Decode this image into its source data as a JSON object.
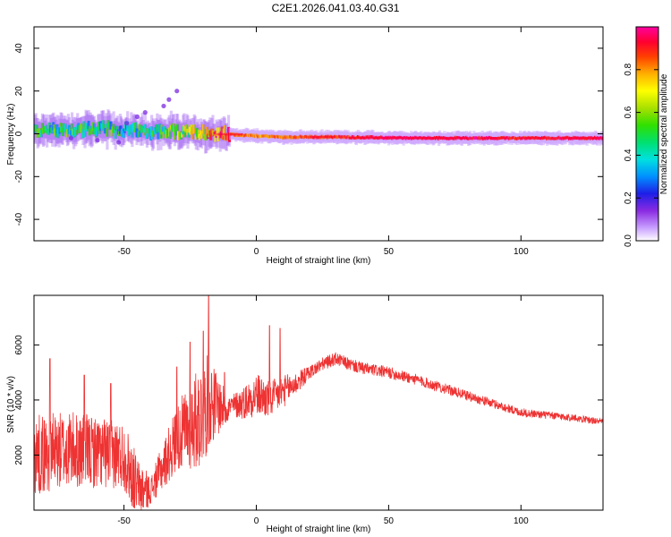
{
  "title": "C2E1.2026.041.03.40.G31",
  "chart_data": [
    {
      "type": "heatmap",
      "name": "spectrogram",
      "xlabel": "Height of straight line (km)",
      "ylabel": "Frequency (Hz)",
      "xlim": [
        -84,
        131
      ],
      "ylim": [
        -50,
        50
      ],
      "xticks": [
        -50,
        0,
        50,
        100
      ],
      "yticks": [
        -40,
        -20,
        0,
        20,
        40
      ],
      "xtick_labels": [
        "-50",
        "0",
        "50",
        "100"
      ],
      "ytick_labels": [
        "-40",
        "-20",
        "0",
        "20",
        "40"
      ],
      "colorbar": {
        "label": "Normalized spectral amplitude",
        "range": [
          0,
          1
        ],
        "ticks": [
          0.0,
          0.2,
          0.4,
          0.6,
          0.8
        ],
        "tick_labels": [
          "0.0",
          "0.2",
          "0.4",
          "0.6",
          "0.8"
        ]
      },
      "signal_track": {
        "description_free_values": true,
        "frequency_hz": [
          [
            -84,
            1.5
          ],
          [
            -60,
            2.5
          ],
          [
            -40,
            1.0
          ],
          [
            -20,
            0.5
          ],
          [
            0,
            -1.0
          ],
          [
            10,
            -1.5
          ],
          [
            30,
            -1.5
          ],
          [
            60,
            -2.0
          ],
          [
            100,
            -2.0
          ],
          [
            131,
            -2.0
          ]
        ],
        "amplitude": [
          [
            -84,
            0.45
          ],
          [
            -60,
            0.45
          ],
          [
            -40,
            0.4
          ],
          [
            -25,
            0.6
          ],
          [
            -15,
            0.85
          ],
          [
            0,
            0.8
          ],
          [
            20,
            0.85
          ],
          [
            50,
            0.95
          ],
          [
            85,
            0.95
          ],
          [
            100,
            0.9
          ],
          [
            131,
            0.95
          ]
        ]
      }
    },
    {
      "type": "line",
      "name": "snr",
      "xlabel": "Height of straight line (km)",
      "ylabel": "SNR (10 * v/v)",
      "xlim": [
        -84,
        131
      ],
      "ylim": [
        0,
        7800
      ],
      "xticks": [
        -50,
        0,
        50,
        100
      ],
      "yticks": [
        2000,
        4000,
        6000
      ],
      "xtick_labels": [
        "-50",
        "0",
        "50",
        "100"
      ],
      "ytick_labels": [
        "2000",
        "4000",
        "6000"
      ],
      "color": "#ee3333",
      "envelope_x": [
        -84,
        -70,
        -50,
        -45,
        -40,
        -30,
        -20,
        -18,
        -12,
        -5,
        0,
        5,
        10,
        15,
        20,
        25,
        30,
        35,
        40,
        50,
        60,
        70,
        80,
        90,
        100,
        110,
        120,
        131
      ],
      "envelope_y": [
        2000,
        2200,
        2000,
        800,
        700,
        2600,
        3500,
        4000,
        3700,
        3900,
        4200,
        4000,
        4300,
        4600,
        5000,
        5300,
        5500,
        5300,
        5150,
        5000,
        4750,
        4450,
        4150,
        3850,
        3550,
        3450,
        3350,
        3200
      ],
      "noise_amplitude": [
        [
          -84,
          1500
        ],
        [
          -45,
          1200
        ],
        [
          -40,
          500
        ],
        [
          -20,
          2000
        ],
        [
          -10,
          400
        ],
        [
          0,
          800
        ],
        [
          10,
          600
        ],
        [
          20,
          250
        ],
        [
          131,
          120
        ]
      ],
      "spikes": [
        [
          -78,
          5500
        ],
        [
          -65,
          4900
        ],
        [
          -55,
          4600
        ],
        [
          -30,
          5200
        ],
        [
          -25,
          6100
        ],
        [
          -20,
          6500
        ],
        [
          -18,
          7800
        ],
        [
          -12,
          5000
        ],
        [
          5,
          6700
        ],
        [
          9,
          6600
        ]
      ],
      "n_samples": 2150
    }
  ]
}
